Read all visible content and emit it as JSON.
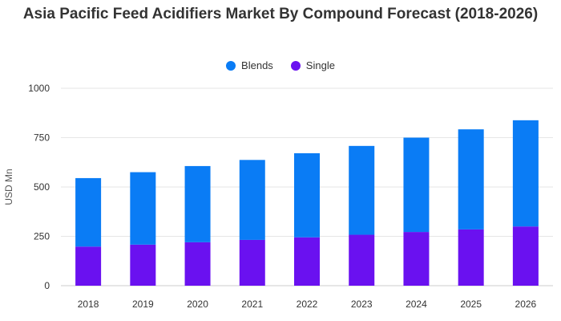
{
  "colors": {
    "blends": "#0a7cf5",
    "single": "#6a11f0",
    "grid": "#e6e6e6",
    "text": "#333333"
  },
  "chart_data": {
    "type": "bar",
    "stacked": true,
    "title": "Asia Pacific Feed Acidifiers Market By Compound Forecast (2018-2026)",
    "xlabel": "",
    "ylabel": "USD Mn",
    "ylim": [
      0,
      1000
    ],
    "yticks": [
      0,
      250,
      500,
      750,
      1000
    ],
    "grid": true,
    "legend_position": "top-center",
    "categories": [
      "2018",
      "2019",
      "2020",
      "2021",
      "2022",
      "2023",
      "2024",
      "2025",
      "2026"
    ],
    "series": [
      {
        "name": "Single",
        "color": "#6a11f0",
        "values": [
          198,
          208,
          220,
          232,
          245,
          258,
          272,
          285,
          300
        ]
      },
      {
        "name": "Blends",
        "color": "#0a7cf5",
        "values": [
          347,
          367,
          386,
          405,
          426,
          450,
          478,
          507,
          538
        ]
      }
    ]
  }
}
